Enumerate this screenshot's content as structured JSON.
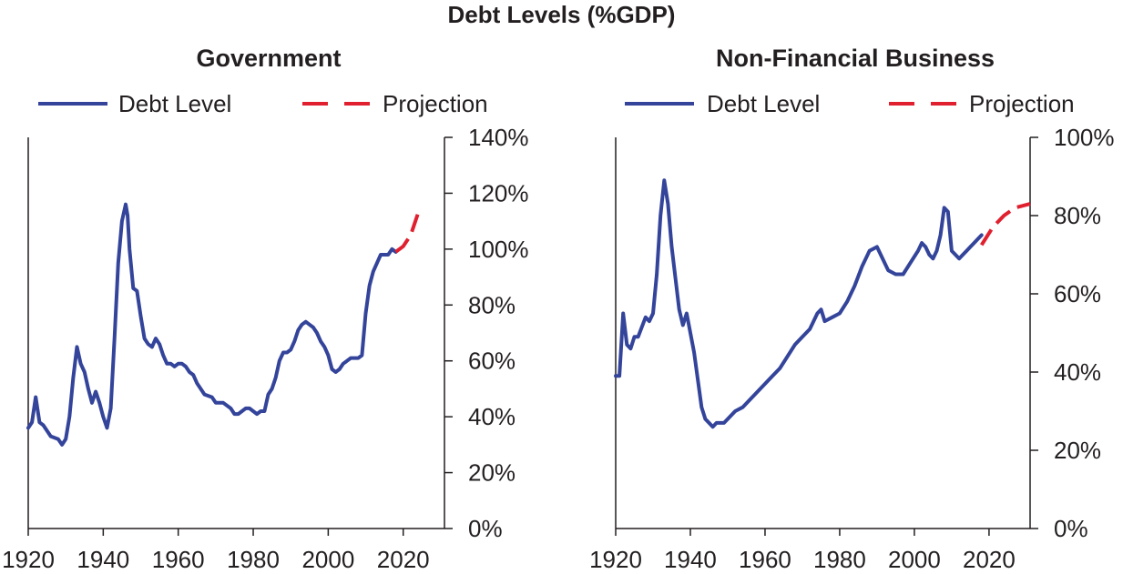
{
  "figure": {
    "title": "Debt Levels (%GDP)"
  },
  "legend": {
    "debt_label": "Debt Level",
    "projection_label": "Projection"
  },
  "colors": {
    "debt_line": "#33449a",
    "projection_line": "#e0202e",
    "axis": "#231f20",
    "text": "#231f20"
  },
  "chart_data": [
    {
      "type": "line",
      "title": "Government",
      "xlim": [
        1920,
        2031
      ],
      "ylim": [
        0,
        140
      ],
      "x_ticks": [
        1920,
        1940,
        1960,
        1980,
        2000,
        2020
      ],
      "y_ticks": [
        0,
        20,
        40,
        60,
        80,
        100,
        120,
        140
      ],
      "y_tick_labels": [
        "0%",
        "20%",
        "40%",
        "60%",
        "80%",
        "100%",
        "120%",
        "140%"
      ],
      "y_axis_side": "right",
      "legend_placement": "top",
      "series": [
        {
          "name": "Debt Level",
          "style": "solid",
          "x": [
            1920,
            1921,
            1922,
            1923,
            1924,
            1926,
            1928,
            1929,
            1930,
            1931,
            1932,
            1933,
            1934,
            1935,
            1936,
            1937,
            1938,
            1939,
            1940,
            1941,
            1942,
            1943,
            1944,
            1945,
            1946,
            1946.5,
            1947,
            1948,
            1949,
            1950,
            1951,
            1952,
            1953,
            1954,
            1955,
            1956,
            1957,
            1958,
            1959,
            1960,
            1961,
            1962,
            1963,
            1964,
            1965,
            1967,
            1969,
            1970,
            1972,
            1974,
            1975,
            1976,
            1977,
            1978,
            1979,
            1980,
            1981,
            1982,
            1983,
            1984,
            1985,
            1986,
            1987,
            1988,
            1989,
            1990,
            1991,
            1992,
            1993,
            1994,
            1995,
            1996,
            1997,
            1998,
            1999,
            2000,
            2001,
            2002,
            2003,
            2004,
            2005,
            2006,
            2007,
            2008,
            2009,
            2010,
            2011,
            2012,
            2013,
            2014,
            2015,
            2016,
            2017,
            2018
          ],
          "y": [
            36,
            38,
            47,
            38,
            37,
            33,
            32,
            30,
            32,
            40,
            54,
            65,
            59,
            56,
            50,
            45,
            49,
            45,
            40,
            36,
            43,
            68,
            95,
            110,
            116,
            112,
            100,
            86,
            85,
            76,
            68,
            66,
            65,
            68,
            66,
            62,
            59,
            59,
            58,
            59,
            59,
            58,
            56,
            55,
            52,
            48,
            47,
            45,
            45,
            43,
            41,
            41,
            42,
            43,
            43,
            42,
            41,
            42,
            42,
            48,
            50,
            54,
            60,
            63,
            63,
            64,
            67,
            71,
            73,
            74,
            73,
            72,
            70,
            67,
            65,
            62,
            57,
            56,
            57,
            59,
            60,
            61,
            61,
            61,
            62,
            77,
            87,
            92,
            95,
            98,
            98,
            98,
            100,
            99
          ]
        },
        {
          "name": "Projection",
          "style": "dashed",
          "x": [
            2018,
            2020,
            2022,
            2024
          ],
          "y": [
            99,
            101,
            105,
            113
          ]
        }
      ]
    },
    {
      "type": "line",
      "title": "Non-Financial Business",
      "xlim": [
        1920,
        2031
      ],
      "ylim": [
        0,
        100
      ],
      "x_ticks": [
        1920,
        1940,
        1960,
        1980,
        2000,
        2020
      ],
      "y_ticks": [
        0,
        20,
        40,
        60,
        80,
        100
      ],
      "y_tick_labels": [
        "0%",
        "20%",
        "40%",
        "60%",
        "80%",
        "100%"
      ],
      "y_axis_side": "right",
      "legend_placement": "top",
      "series": [
        {
          "name": "Debt Level",
          "style": "solid",
          "x": [
            1920,
            1921,
            1922,
            1923,
            1924,
            1925,
            1926,
            1928,
            1929,
            1930,
            1931,
            1932,
            1933,
            1934,
            1935,
            1936,
            1937,
            1938,
            1939,
            1940,
            1941,
            1942,
            1943,
            1944,
            1945,
            1946,
            1947,
            1948,
            1949,
            1950,
            1952,
            1954,
            1956,
            1958,
            1960,
            1962,
            1964,
            1966,
            1968,
            1970,
            1972,
            1974,
            1975,
            1976,
            1978,
            1980,
            1982,
            1984,
            1986,
            1988,
            1990,
            1991,
            1993,
            1995,
            1997,
            1999,
            2001,
            2002,
            2003,
            2004,
            2005,
            2006,
            2007,
            2008,
            2009,
            2010,
            2011,
            2012,
            2013,
            2014,
            2015,
            2016,
            2017,
            2018
          ],
          "y": [
            39,
            39,
            55,
            47,
            46,
            49,
            49,
            54,
            53,
            55,
            65,
            80,
            89,
            83,
            72,
            64,
            56,
            52,
            55,
            50,
            45,
            38,
            31,
            28,
            27,
            26,
            27,
            27,
            27,
            28,
            30,
            31,
            33,
            35,
            37,
            39,
            41,
            44,
            47,
            49,
            51,
            55,
            56,
            53,
            54,
            55,
            58,
            62,
            67,
            71,
            72,
            70,
            66,
            65,
            65,
            68,
            71,
            73,
            72,
            70,
            69,
            71,
            75,
            82,
            81,
            71,
            70,
            69,
            70,
            71,
            72,
            73,
            74,
            75
          ]
        },
        {
          "name": "Projection",
          "style": "dashed",
          "x": [
            2018,
            2021,
            2024,
            2027,
            2031
          ],
          "y": [
            72.5,
            77,
            80,
            82,
            83
          ]
        }
      ]
    }
  ]
}
